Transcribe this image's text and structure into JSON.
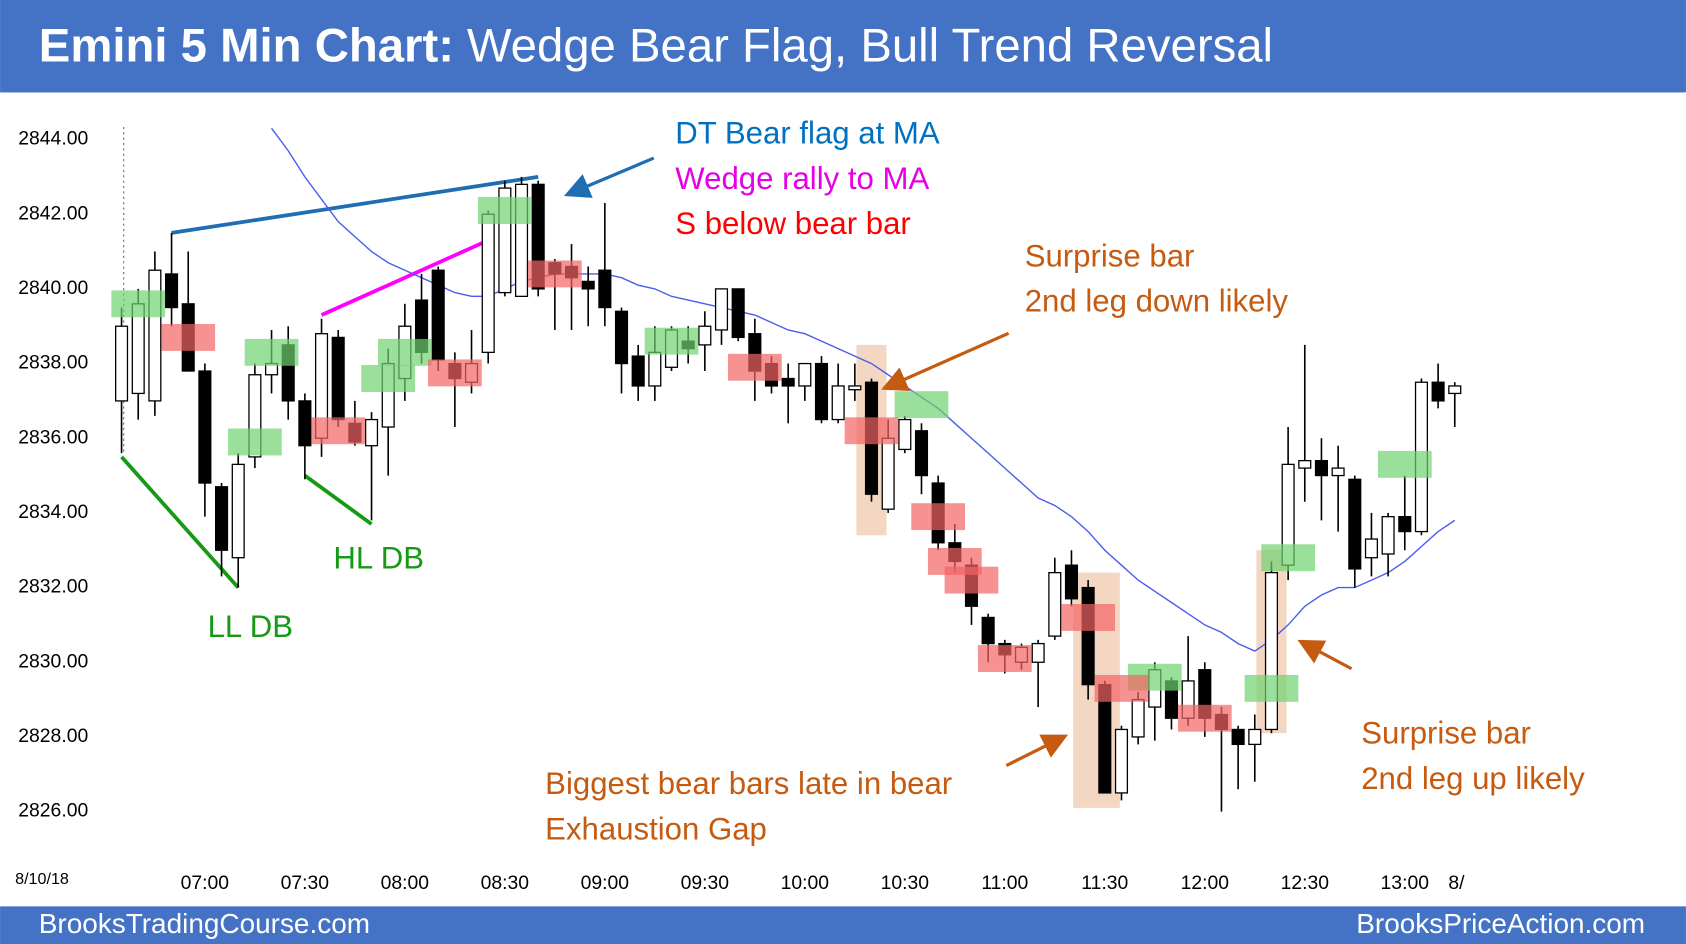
{
  "chart_data": {
    "type": "candlestick",
    "title": "Emini 5 Min Chart:",
    "subtitle": "Wedge Bear Flag, Bull Trend Reversal",
    "date_label": "8/10/18",
    "x_end_label": "8/",
    "footer_left": "BrooksTradingCourse.com",
    "footer_right": "BrooksPriceAction.com",
    "categories": [
      null,
      null,
      null,
      null,
      null,
      "07:00",
      null,
      null,
      null,
      null,
      null,
      "07:30",
      null,
      null,
      null,
      null,
      null,
      "08:00",
      null,
      null,
      null,
      null,
      null,
      "08:30",
      null,
      null,
      null,
      null,
      null,
      "09:00",
      null,
      null,
      null,
      null,
      null,
      "09:30",
      null,
      null,
      null,
      null,
      null,
      "10:00",
      null,
      null,
      null,
      null,
      null,
      "10:30",
      null,
      null,
      null,
      null,
      null,
      "11:00",
      null,
      null,
      null,
      null,
      null,
      "11:30",
      null,
      null,
      null,
      null,
      null,
      "12:00",
      null,
      null,
      null,
      null,
      null,
      "12:30",
      null,
      null,
      null,
      null,
      null,
      "13:00",
      null,
      null,
      null
    ],
    "open": [
      2837.0,
      2837.2,
      2837.0,
      2840.4,
      2839.6,
      2837.8,
      2834.7,
      2832.8,
      2835.5,
      2837.7,
      2838.5,
      2837.0,
      2836.0,
      2838.7,
      2836.4,
      2835.8,
      2836.3,
      2837.6,
      2839.7,
      2840.5,
      2838.0,
      2837.5,
      2838.3,
      2839.9,
      2839.8,
      2842.8,
      2840.7,
      2840.6,
      2840.2,
      2840.5,
      2839.4,
      2838.2,
      2837.4,
      2837.9,
      2838.6,
      2838.5,
      2838.9,
      2840.0,
      2838.8,
      2838.0,
      2837.6,
      2837.4,
      2838.0,
      2836.5,
      2837.3,
      2837.5,
      2834.1,
      2835.7,
      2836.2,
      2834.8,
      2833.2,
      2832.6,
      2831.2,
      2830.5,
      2830.0,
      2830.0,
      2830.7,
      2832.6,
      2832.0,
      2829.4,
      2826.5,
      2828.0,
      2828.8,
      2829.5,
      2828.5,
      2829.8,
      2828.6,
      2828.2,
      2827.8,
      2828.2,
      2832.6,
      2835.2,
      2835.4,
      2835.0,
      2834.9,
      2832.8,
      2832.9,
      2833.9,
      2833.5,
      2837.5,
      2837.2
    ],
    "high": [
      2839.5,
      2840.0,
      2841.0,
      2841.5,
      2841.0,
      2838.0,
      2834.8,
      2835.6,
      2838.0,
      2838.9,
      2839.0,
      2837.2,
      2839.2,
      2838.9,
      2837.0,
      2836.7,
      2838.4,
      2839.6,
      2840.4,
      2840.6,
      2838.3,
      2838.9,
      2842.1,
      2842.9,
      2843.0,
      2842.9,
      2840.8,
      2841.2,
      2840.6,
      2842.3,
      2839.5,
      2838.5,
      2839.0,
      2839.0,
      2839.0,
      2839.4,
      2840.0,
      2840.0,
      2839.2,
      2838.2,
      2838.0,
      2838.0,
      2838.2,
      2838.0,
      2838.0,
      2837.6,
      2836.5,
      2836.6,
      2836.4,
      2835.0,
      2833.7,
      2832.8,
      2831.3,
      2830.6,
      2830.5,
      2830.6,
      2832.8,
      2833.0,
      2832.2,
      2829.5,
      2828.3,
      2829.2,
      2830.0,
      2829.6,
      2830.7,
      2830.0,
      2828.8,
      2828.3,
      2828.6,
      2832.7,
      2836.3,
      2838.5,
      2836.0,
      2835.8,
      2835.0,
      2834.0,
      2834.0,
      2835.0,
      2837.6,
      2838.0,
      2837.5
    ],
    "low": [
      2835.6,
      2836.5,
      2836.6,
      2839.0,
      2837.8,
      2833.9,
      2832.3,
      2832.0,
      2835.2,
      2837.2,
      2836.5,
      2834.9,
      2835.5,
      2836.3,
      2835.8,
      2833.8,
      2835.0,
      2837.0,
      2838.0,
      2837.8,
      2836.3,
      2837.2,
      2838.0,
      2839.8,
      2839.8,
      2839.8,
      2838.9,
      2838.9,
      2839.0,
      2839.0,
      2837.2,
      2837.0,
      2837.0,
      2837.8,
      2838.0,
      2837.8,
      2838.5,
      2838.6,
      2837.0,
      2837.2,
      2836.4,
      2837.0,
      2836.4,
      2836.4,
      2837.0,
      2834.3,
      2834.0,
      2835.6,
      2834.5,
      2833.0,
      2832.4,
      2831.0,
      2830.0,
      2829.7,
      2829.8,
      2828.8,
      2830.6,
      2831.5,
      2829.0,
      2826.5,
      2826.3,
      2827.8,
      2827.9,
      2828.2,
      2828.3,
      2828.0,
      2826.0,
      2826.6,
      2826.8,
      2828.1,
      2832.2,
      2834.3,
      2833.8,
      2833.5,
      2832.0,
      2832.3,
      2832.3,
      2833.0,
      2833.4,
      2836.8,
      2836.3
    ],
    "close": [
      2839.0,
      2839.6,
      2840.5,
      2839.5,
      2837.8,
      2834.8,
      2833.0,
      2835.3,
      2837.7,
      2838.0,
      2837.0,
      2835.8,
      2838.8,
      2836.5,
      2835.9,
      2836.5,
      2838.0,
      2839.0,
      2838.3,
      2838.1,
      2837.6,
      2838.0,
      2842.0,
      2842.7,
      2842.8,
      2840.0,
      2840.4,
      2840.3,
      2840.0,
      2839.5,
      2838.0,
      2837.4,
      2838.3,
      2838.9,
      2838.4,
      2839.0,
      2840.0,
      2838.7,
      2837.8,
      2837.4,
      2837.4,
      2838.0,
      2836.5,
      2837.4,
      2837.4,
      2834.5,
      2836.0,
      2836.5,
      2835.0,
      2833.2,
      2832.7,
      2831.5,
      2830.5,
      2830.2,
      2830.4,
      2830.5,
      2832.4,
      2831.7,
      2829.4,
      2826.5,
      2828.2,
      2829.0,
      2829.8,
      2828.5,
      2829.5,
      2828.5,
      2828.2,
      2827.8,
      2828.2,
      2832.4,
      2835.3,
      2835.4,
      2835.0,
      2835.2,
      2832.5,
      2833.3,
      2833.9,
      2833.5,
      2837.5,
      2837.0,
      2837.4
    ],
    "ma": {
      "color": "#4a5ee8",
      "values": [
        null,
        null,
        null,
        null,
        null,
        null,
        null,
        null,
        null,
        2844.3,
        2843.7,
        2843.0,
        2842.4,
        2841.8,
        2841.4,
        2841.0,
        2840.7,
        2840.5,
        2840.3,
        2840.1,
        2839.9,
        2839.8,
        2839.8,
        2840.0,
        2840.2,
        2840.3,
        2840.4,
        2840.4,
        2840.4,
        2840.4,
        2840.3,
        2840.1,
        2840.0,
        2839.8,
        2839.7,
        2839.6,
        2839.5,
        2839.4,
        2839.3,
        2839.1,
        2838.9,
        2838.8,
        2838.6,
        2838.4,
        2838.2,
        2838.0,
        2837.7,
        2837.4,
        2837.1,
        2836.8,
        2836.4,
        2836.0,
        2835.6,
        2835.2,
        2834.8,
        2834.4,
        2834.2,
        2833.9,
        2833.5,
        2833.0,
        2832.6,
        2832.2,
        2831.9,
        2831.6,
        2831.3,
        2831.0,
        2830.8,
        2830.5,
        2830.3,
        2830.6,
        2831.0,
        2831.5,
        2831.8,
        2832.0,
        2832.0,
        2832.2,
        2832.4,
        2832.7,
        2833.1,
        2833.5,
        2833.8
      ]
    },
    "ylim": [
      2824.7,
      2844.8
    ],
    "yticks": [
      {
        "value": 2826,
        "label": "2826.00"
      },
      {
        "value": 2828,
        "label": "2828.00"
      },
      {
        "value": 2830,
        "label": "2830.00"
      },
      {
        "value": 2832,
        "label": "2832.00"
      },
      {
        "value": 2834,
        "label": "2834.00"
      },
      {
        "value": 2836,
        "label": "2836.00"
      },
      {
        "value": 2838,
        "label": "2838.00"
      },
      {
        "value": 2840,
        "label": "2840.00"
      },
      {
        "value": 2842,
        "label": "2842.00"
      },
      {
        "value": 2844,
        "label": "2844.00"
      }
    ],
    "grid": false,
    "up_color": "#ffffff",
    "down_color": "#000000",
    "buy_color": "#6fd26f",
    "sell_color": "#f26464",
    "highlight_color": "#efc9ad",
    "buy_boxes": [
      {
        "bar": 1,
        "price": 2839.6
      },
      {
        "bar": 8,
        "price": 2835.9
      },
      {
        "bar": 9,
        "price": 2838.3
      },
      {
        "bar": 16,
        "price": 2837.6
      },
      {
        "bar": 17,
        "price": 2838.3
      },
      {
        "bar": 23,
        "price": 2842.1
      },
      {
        "bar": 33,
        "price": 2838.6
      },
      {
        "bar": 48,
        "price": 2836.9
      },
      {
        "bar": 62,
        "price": 2829.6
      },
      {
        "bar": 69,
        "price": 2829.3
      },
      {
        "bar": 70,
        "price": 2832.8
      },
      {
        "bar": 77,
        "price": 2835.3
      }
    ],
    "sell_boxes": [
      {
        "bar": 4,
        "price": 2838.7
      },
      {
        "bar": 13,
        "price": 2836.2
      },
      {
        "bar": 20,
        "price": 2837.75
      },
      {
        "bar": 26,
        "price": 2840.4
      },
      {
        "bar": 38,
        "price": 2837.9
      },
      {
        "bar": 45,
        "price": 2836.2
      },
      {
        "bar": 49,
        "price": 2833.9
      },
      {
        "bar": 50,
        "price": 2832.7
      },
      {
        "bar": 51,
        "price": 2832.2
      },
      {
        "bar": 53,
        "price": 2830.1
      },
      {
        "bar": 58,
        "price": 2831.2
      },
      {
        "bar": 60,
        "price": 2829.3
      },
      {
        "bar": 65,
        "price": 2828.5
      }
    ],
    "highlights": [
      {
        "from_bar": 45,
        "to_bar": 45,
        "top": 2838.5,
        "bottom": 2833.4
      },
      {
        "from_bar": 58,
        "to_bar": 59,
        "top": 2832.4,
        "bottom": 2826.1
      },
      {
        "from_bar": 69,
        "to_bar": 69,
        "top": 2833.0,
        "bottom": 2828.1
      }
    ],
    "trend_lines": [
      {
        "color": "#1f6db3",
        "x1": 3,
        "y1": 2841.5,
        "x2": 25,
        "y2": 2843.0
      },
      {
        "color": "#ff00ff",
        "x1": 12,
        "y1": 2839.3,
        "x2": 22,
        "y2": 2841.3
      },
      {
        "color": "#169a16",
        "x1": 0,
        "y1": 2835.5,
        "x2": 7,
        "y2": 2832.0
      },
      {
        "color": "#169a16",
        "x1": 11,
        "y1": 2835.0,
        "x2": 15,
        "y2": 2833.7
      }
    ],
    "annotations": [
      {
        "text": "DT Bear flag at MA",
        "color": "#0070c0"
      },
      {
        "text": "Wedge rally to MA",
        "color": "#e600e6"
      },
      {
        "text": "S below bear bar",
        "color": "#ff0000"
      },
      {
        "text": "Surprise bar",
        "color": "#c55a11"
      },
      {
        "text": "2nd leg down likely",
        "color": "#c55a11"
      },
      {
        "text": "LL DB",
        "color": "#169a16"
      },
      {
        "text": "HL DB",
        "color": "#169a16"
      },
      {
        "text": "Biggest bear bars late in bear",
        "color": "#c55a11"
      },
      {
        "text": "Exhaustion Gap",
        "color": "#c55a11"
      },
      {
        "text": "Surprise bar",
        "color": "#c55a11"
      },
      {
        "text": "2nd leg up likely",
        "color": "#c55a11"
      }
    ]
  }
}
